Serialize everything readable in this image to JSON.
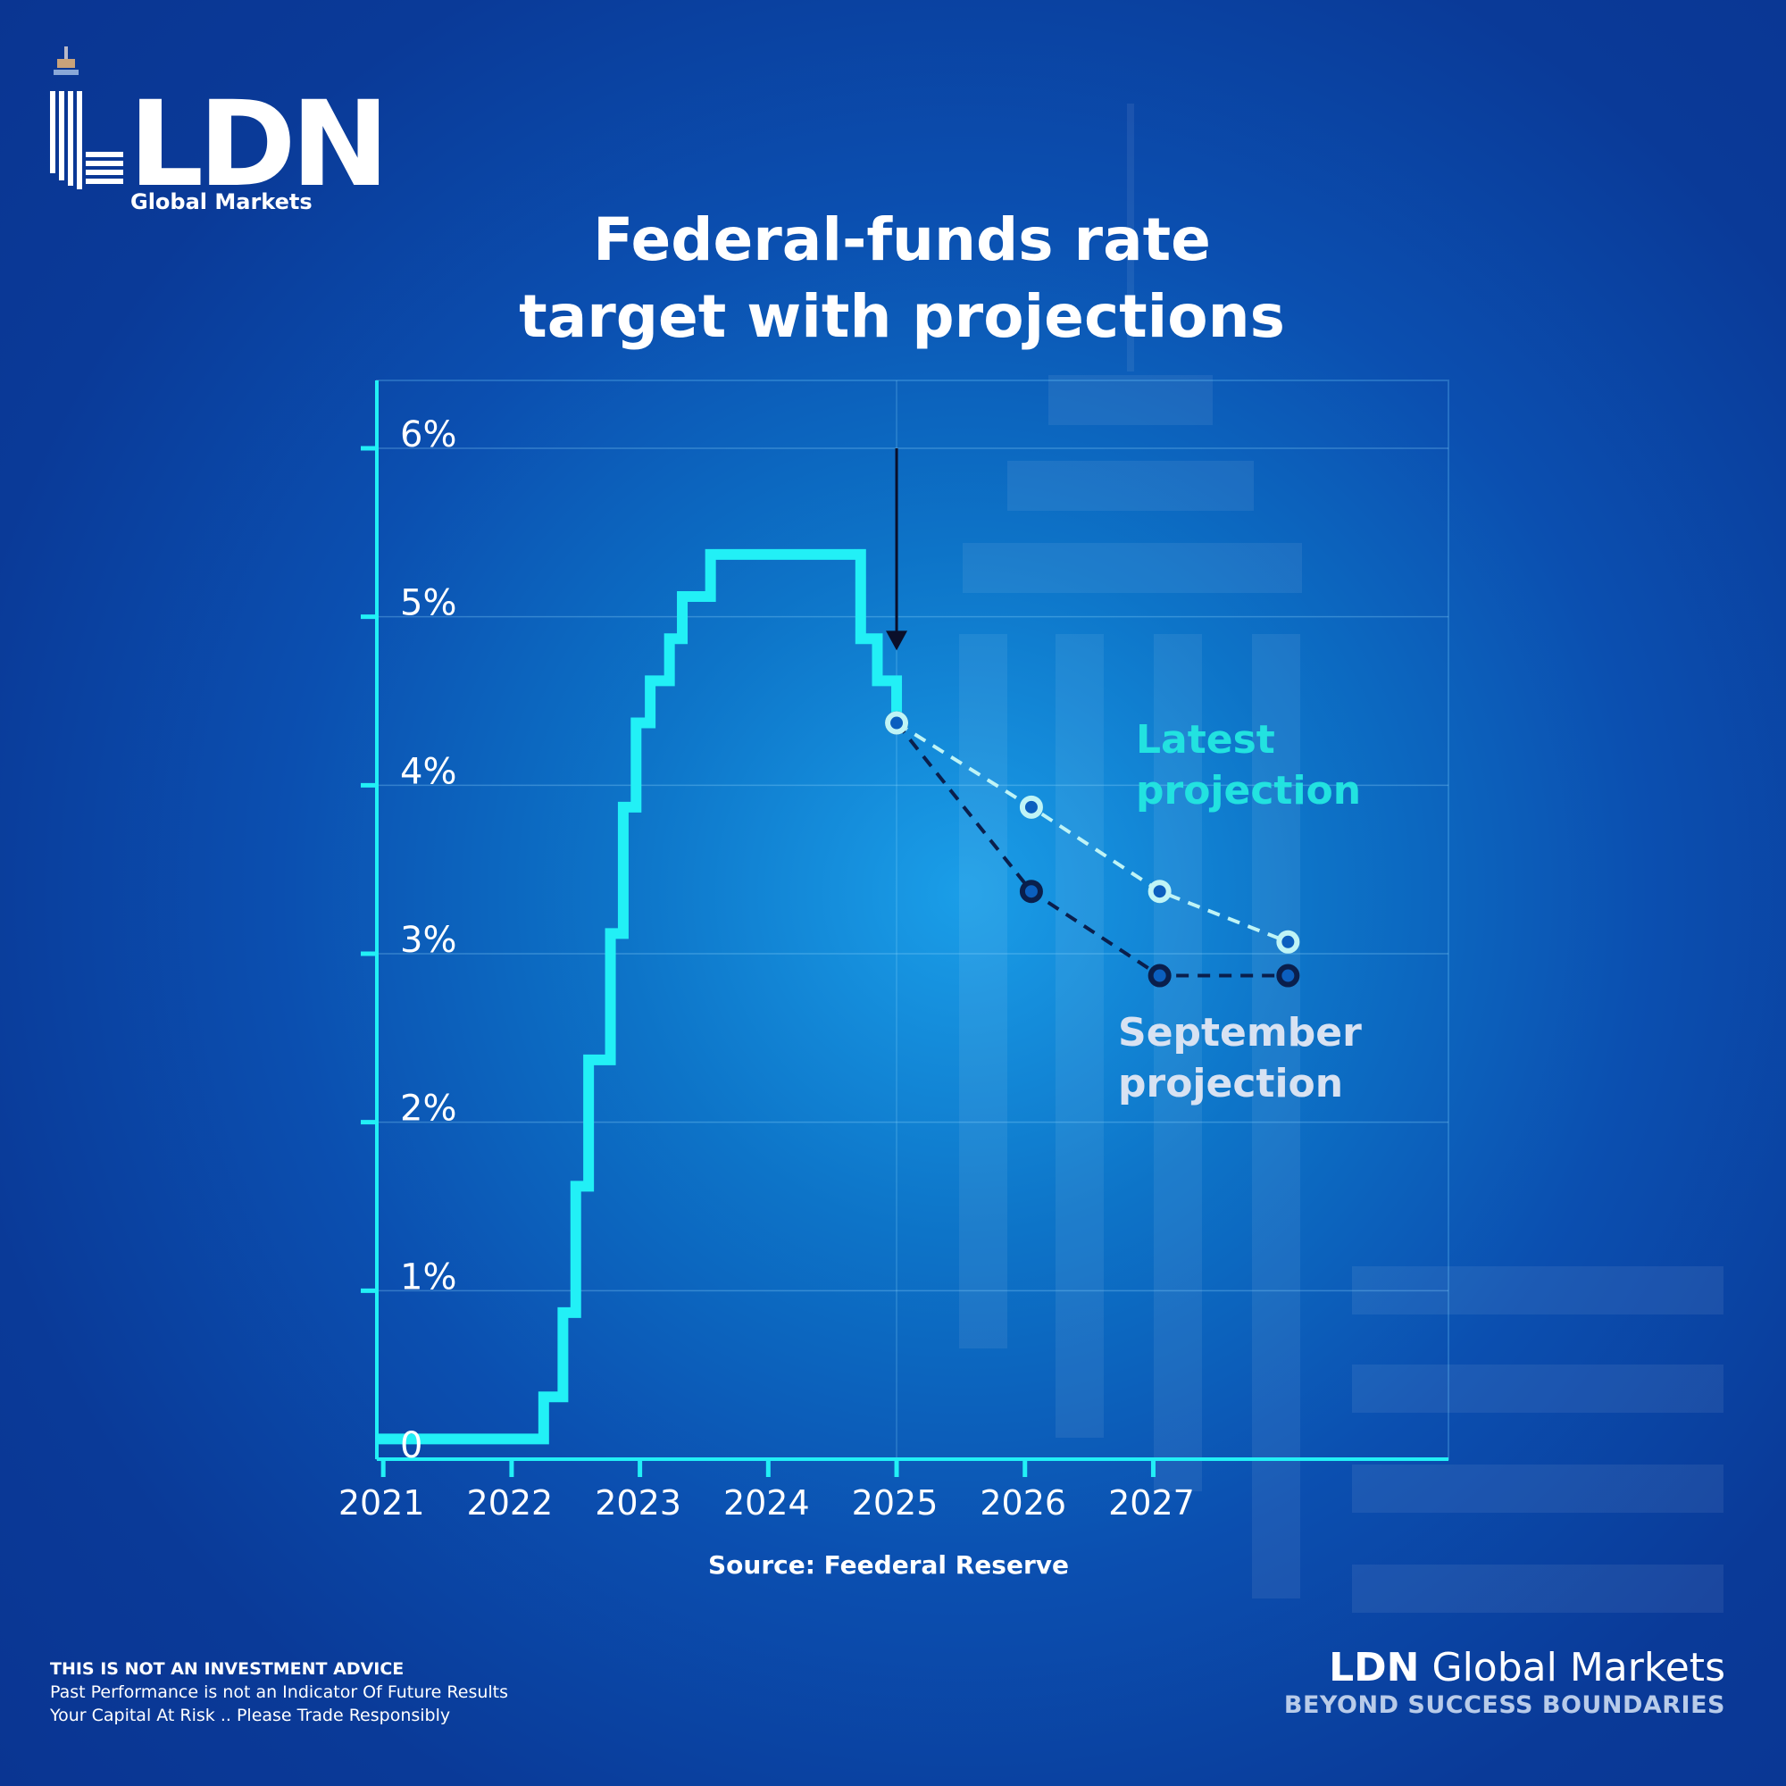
{
  "brand": {
    "logo_text": "LDN",
    "logo_subtitle": "Global Markets",
    "footer_name_bold": "LDN",
    "footer_name_rest": "Global Markets",
    "tagline": "BEYOND SUCCESS BOUNDARIES"
  },
  "title": {
    "line1": "Federal-funds rate",
    "line2": "target with projections"
  },
  "source": "Source: Feederal Reserve",
  "annotations": {
    "latest_line1": "Latest",
    "latest_line2": "projection",
    "september_line1": "September",
    "september_line2": "projection"
  },
  "disclaimer": {
    "line1": "THIS IS NOT AN INVESTMENT ADVICE",
    "line2": "Past Performance is not an Indicator Of Future Results",
    "line3": "Your Capital At Risk .. Please Trade Responsibly"
  },
  "colors": {
    "history": "#22f0f6",
    "latest": "#bff4f6",
    "september": "#0a1f4c",
    "axis": "#22f0f6",
    "background": "#0b4fb0"
  },
  "chart_data": {
    "type": "line",
    "title": "Federal-funds rate target with projections",
    "xlabel": "",
    "ylabel": "",
    "xlim": [
      2020.95,
      2029.3
    ],
    "ylim": [
      0,
      6
    ],
    "grid": true,
    "x_tick_labels": [
      "2021",
      "2022",
      "2023",
      "2024",
      "2025",
      "2026",
      "2027"
    ],
    "x_ticks": [
      2021,
      2022,
      2023,
      2024,
      2025,
      2026,
      2027
    ],
    "y_tick_labels": [
      "0",
      "1%",
      "2%",
      "3%",
      "4%",
      "5%",
      "6%"
    ],
    "y_ticks": [
      0,
      1,
      2,
      3,
      4,
      5,
      6
    ],
    "series": [
      {
        "style": "step",
        "points": [
          [
            2021.0,
            0.12
          ],
          [
            2022.25,
            0.12
          ],
          [
            2022.25,
            0.37
          ],
          [
            2022.4,
            0.37
          ],
          [
            2022.4,
            0.87
          ],
          [
            2022.5,
            0.87
          ],
          [
            2022.5,
            1.62
          ],
          [
            2022.6,
            1.62
          ],
          [
            2022.6,
            2.37
          ],
          [
            2022.77,
            2.37
          ],
          [
            2022.77,
            3.12
          ],
          [
            2022.87,
            3.12
          ],
          [
            2022.87,
            3.87
          ],
          [
            2022.97,
            3.87
          ],
          [
            2022.97,
            4.37
          ],
          [
            2023.08,
            4.37
          ],
          [
            2023.08,
            4.62
          ],
          [
            2023.23,
            4.62
          ],
          [
            2023.23,
            4.87
          ],
          [
            2023.33,
            4.87
          ],
          [
            2023.33,
            5.12
          ],
          [
            2023.55,
            5.12
          ],
          [
            2023.55,
            5.37
          ],
          [
            2024.72,
            5.37
          ],
          [
            2024.72,
            4.87
          ],
          [
            2024.85,
            4.87
          ],
          [
            2024.85,
            4.62
          ],
          [
            2025.0,
            4.62
          ],
          [
            2025.0,
            4.37
          ]
        ]
      },
      {
        "name": "Latest projection",
        "style": "dashed",
        "x": [
          2025.0,
          2026.05,
          2027.05,
          2028.05
        ],
        "values": [
          4.37,
          3.87,
          3.37,
          3.07
        ]
      },
      {
        "name": "September projection",
        "style": "dashed",
        "x": [
          2025.0,
          2026.05,
          2027.05,
          2028.05
        ],
        "values": [
          4.37,
          3.37,
          2.87,
          2.87
        ]
      }
    ],
    "marker": {
      "type": "arrow-down",
      "x": 2025.0,
      "from": 6.0,
      "to": 4.8
    }
  }
}
